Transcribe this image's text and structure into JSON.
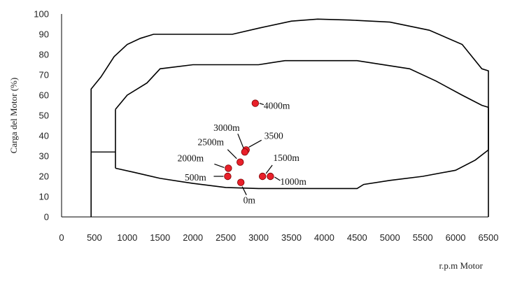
{
  "chart_data": {
    "type": "scatter",
    "xlabel": "r.p.m Motor",
    "ylabel": "Carga del Motor (%)",
    "xlim": [
      0,
      6500
    ],
    "ylim": [
      0,
      100
    ],
    "x_ticks": [
      0,
      500,
      1000,
      1500,
      2000,
      2500,
      3000,
      3500,
      4000,
      4500,
      5000,
      5500,
      6000,
      6500
    ],
    "y_ticks": [
      0,
      10,
      20,
      30,
      40,
      50,
      60,
      70,
      80,
      90,
      100
    ],
    "grid": false,
    "marker_color": "#e8202a",
    "points": [
      {
        "label": "4000m",
        "x": 2950,
        "y": 56
      },
      {
        "label": "3500",
        "x": 2810,
        "y": 33
      },
      {
        "label": "3000m",
        "x": 2790,
        "y": 32
      },
      {
        "label": "2500m",
        "x": 2720,
        "y": 27
      },
      {
        "label": "2000m",
        "x": 2540,
        "y": 24
      },
      {
        "label": "1500m",
        "x": 3060,
        "y": 20
      },
      {
        "label": "1000m",
        "x": 3180,
        "y": 20
      },
      {
        "label": "500m",
        "x": 2530,
        "y": 20
      },
      {
        "label": "0m",
        "x": 2730,
        "y": 17
      }
    ],
    "envelopes": {
      "outer_upper": [
        [
          450,
          63
        ],
        [
          600,
          69
        ],
        [
          800,
          79
        ],
        [
          1000,
          85
        ],
        [
          1200,
          88
        ],
        [
          1400,
          90
        ],
        [
          2600,
          90
        ],
        [
          3000,
          93
        ],
        [
          3500,
          96.5
        ],
        [
          3900,
          97.5
        ],
        [
          4400,
          97
        ],
        [
          5000,
          96
        ],
        [
          5600,
          92
        ],
        [
          6100,
          85
        ],
        [
          6400,
          73
        ],
        [
          6500,
          72
        ]
      ],
      "outer_lower": [
        [
          450,
          0
        ],
        [
          6500,
          0
        ]
      ],
      "inner_upper": [
        [
          820,
          53
        ],
        [
          1000,
          60
        ],
        [
          1300,
          66
        ],
        [
          1500,
          73
        ],
        [
          2000,
          75
        ],
        [
          3000,
          75
        ],
        [
          3400,
          77
        ],
        [
          4500,
          77
        ],
        [
          5300,
          73
        ],
        [
          5700,
          67
        ],
        [
          6100,
          60
        ],
        [
          6400,
          55
        ],
        [
          6500,
          54
        ]
      ],
      "inner_lower": [
        [
          820,
          24
        ],
        [
          1100,
          22
        ],
        [
          1500,
          19
        ],
        [
          2000,
          16.5
        ],
        [
          2500,
          14.5
        ],
        [
          3000,
          14
        ],
        [
          4500,
          14
        ],
        [
          4600,
          16
        ],
        [
          5000,
          18
        ],
        [
          5500,
          20
        ],
        [
          6000,
          23
        ],
        [
          6300,
          28
        ],
        [
          6500,
          33
        ]
      ],
      "step": [
        [
          450,
          32
        ],
        [
          820,
          32
        ]
      ]
    }
  }
}
